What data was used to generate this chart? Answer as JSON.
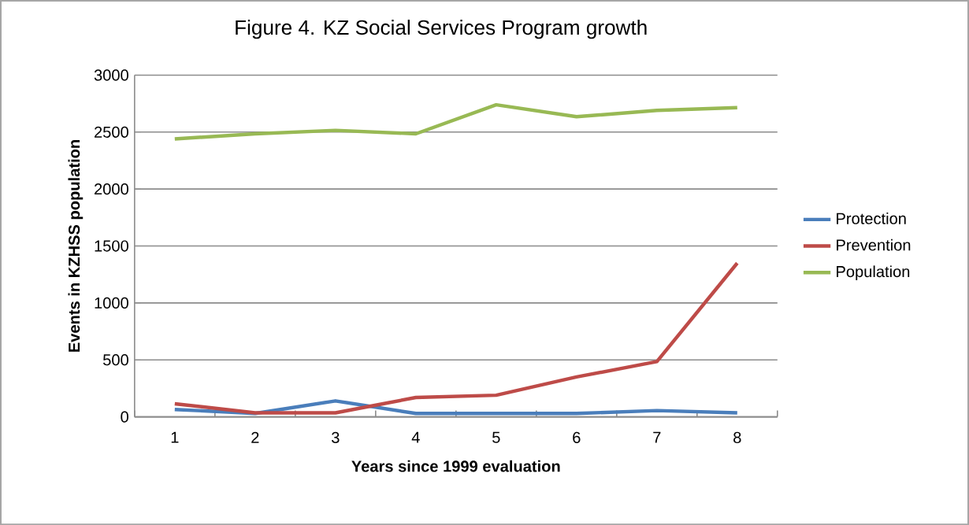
{
  "chart_data": {
    "type": "line",
    "title": "Figure 4. KZ Social Services Program growth",
    "xlabel": "Years since 1999 evaluation",
    "ylabel": "Events in KZHSS population",
    "categories": [
      "1",
      "2",
      "3",
      "4",
      "5",
      "6",
      "7",
      "8"
    ],
    "series": [
      {
        "name": "Protection",
        "color": "#4a7ebb",
        "values": [
          65,
          30,
          140,
          30,
          30,
          30,
          55,
          35
        ]
      },
      {
        "name": "Prevention",
        "color": "#be4b48",
        "values": [
          115,
          35,
          35,
          170,
          190,
          350,
          485,
          1350
        ]
      },
      {
        "name": "Population",
        "color": "#98b954",
        "values": [
          2440,
          2485,
          2515,
          2485,
          2740,
          2635,
          2690,
          2715
        ]
      }
    ],
    "ylim": [
      0,
      3000
    ],
    "yticks": [
      0,
      500,
      1000,
      1500,
      2000,
      2500,
      3000
    ],
    "grid": "y",
    "legend": "right",
    "marker": "none",
    "line_style": "solid"
  }
}
